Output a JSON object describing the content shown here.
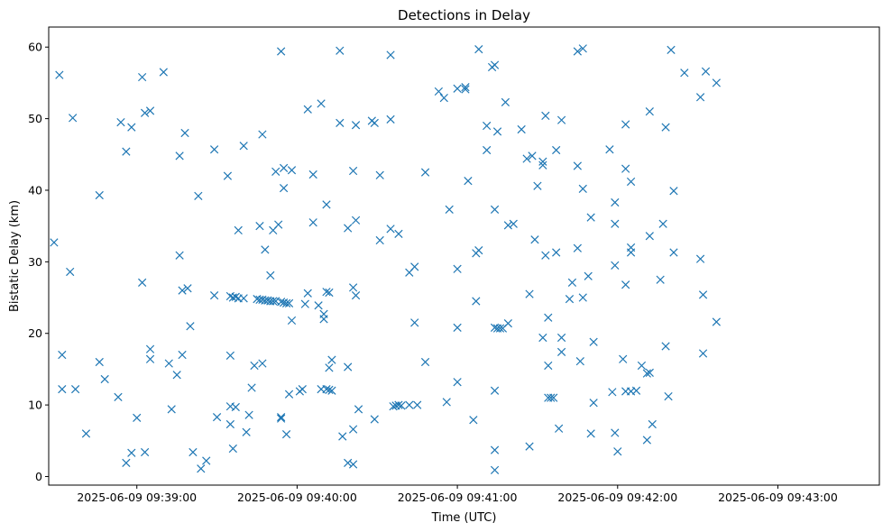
{
  "chart_data": {
    "type": "scatter",
    "title": "Detections in Delay",
    "xlabel": "Time (UTC)",
    "ylabel": "Bistatic Delay (km)",
    "marker": "x",
    "color": "#1f77b4",
    "grid": false,
    "xlim": [
      "2025-06-09 09:38:27",
      "2025-06-09 09:43:38"
    ],
    "ylim": [
      -1.2,
      62.8
    ],
    "x_ticks": [
      "2025-06-09 09:39:00",
      "2025-06-09 09:40:00",
      "2025-06-09 09:41:00",
      "2025-06-09 09:42:00",
      "2025-06-09 09:43:00"
    ],
    "y_ticks": [
      "0",
      "10",
      "20",
      "30",
      "40",
      "50",
      "60"
    ],
    "y_tick_values": [
      0,
      10,
      20,
      30,
      40,
      50,
      60
    ],
    "points": [
      [
        "09:38:29",
        32.7
      ],
      [
        "09:38:31",
        56.1
      ],
      [
        "09:38:32",
        17.0
      ],
      [
        "09:38:32",
        12.2
      ],
      [
        "09:38:35",
        28.6
      ],
      [
        "09:38:36",
        50.1
      ],
      [
        "09:38:37",
        12.2
      ],
      [
        "09:38:41",
        6.0
      ],
      [
        "09:38:46",
        39.3
      ],
      [
        "09:38:46",
        16.0
      ],
      [
        "09:38:48",
        13.6
      ],
      [
        "09:38:53",
        11.1
      ],
      [
        "09:38:54",
        49.5
      ],
      [
        "09:38:56",
        45.4
      ],
      [
        "09:38:56",
        1.9
      ],
      [
        "09:38:58",
        48.8
      ],
      [
        "09:38:58",
        3.3
      ],
      [
        "09:39:00",
        8.2
      ],
      [
        "09:39:02",
        55.8
      ],
      [
        "09:39:02",
        27.1
      ],
      [
        "09:39:03",
        3.4
      ],
      [
        "09:39:03",
        50.8
      ],
      [
        "09:39:05",
        51.1
      ],
      [
        "09:39:05",
        17.8
      ],
      [
        "09:39:05",
        16.4
      ],
      [
        "09:39:10",
        56.5
      ],
      [
        "09:39:12",
        15.8
      ],
      [
        "09:39:13",
        9.4
      ],
      [
        "09:39:15",
        14.2
      ],
      [
        "09:39:16",
        44.8
      ],
      [
        "09:39:16",
        30.9
      ],
      [
        "09:39:17",
        17.0
      ],
      [
        "09:39:17",
        26.0
      ],
      [
        "09:39:18",
        48.0
      ],
      [
        "09:39:19",
        26.3
      ],
      [
        "09:39:20",
        21.0
      ],
      [
        "09:39:21",
        3.4
      ],
      [
        "09:39:23",
        39.2
      ],
      [
        "09:39:24",
        1.1
      ],
      [
        "09:39:26",
        2.2
      ],
      [
        "09:39:29",
        45.7
      ],
      [
        "09:39:29",
        25.3
      ],
      [
        "09:39:30",
        8.3
      ],
      [
        "09:39:34",
        42.0
      ],
      [
        "09:39:35",
        25.2
      ],
      [
        "09:39:35",
        16.9
      ],
      [
        "09:39:35",
        7.3
      ],
      [
        "09:39:35",
        9.8
      ],
      [
        "09:39:36",
        25.0
      ],
      [
        "09:39:36",
        3.9
      ],
      [
        "09:39:37",
        25.1
      ],
      [
        "09:39:37",
        9.7
      ],
      [
        "09:39:38",
        24.9
      ],
      [
        "09:39:38",
        34.4
      ],
      [
        "09:39:40",
        46.2
      ],
      [
        "09:39:40",
        24.9
      ],
      [
        "09:39:41",
        6.2
      ],
      [
        "09:39:42",
        8.6
      ],
      [
        "09:39:43",
        12.4
      ],
      [
        "09:39:44",
        15.5
      ],
      [
        "09:39:45",
        24.8
      ],
      [
        "09:39:46",
        24.7
      ],
      [
        "09:39:46",
        35.0
      ],
      [
        "09:39:47",
        24.7
      ],
      [
        "09:39:47",
        47.8
      ],
      [
        "09:39:47",
        15.8
      ],
      [
        "09:39:48",
        31.7
      ],
      [
        "09:39:48",
        24.6
      ],
      [
        "09:39:49",
        24.6
      ],
      [
        "09:39:50",
        28.1
      ],
      [
        "09:39:50",
        24.5
      ],
      [
        "09:39:51",
        34.4
      ],
      [
        "09:39:51",
        24.5
      ],
      [
        "09:39:52",
        42.6
      ],
      [
        "09:39:52",
        24.5
      ],
      [
        "09:39:53",
        35.2
      ],
      [
        "09:39:54",
        24.4
      ],
      [
        "09:39:54",
        59.4
      ],
      [
        "09:39:54",
        8.3
      ],
      [
        "09:39:54",
        8.1
      ],
      [
        "09:39:55",
        43.1
      ],
      [
        "09:39:55",
        40.3
      ],
      [
        "09:39:55",
        24.3
      ],
      [
        "09:39:56",
        5.9
      ],
      [
        "09:39:56",
        24.2
      ],
      [
        "09:39:57",
        24.2
      ],
      [
        "09:39:57",
        11.5
      ],
      [
        "09:39:58",
        42.8
      ],
      [
        "09:39:58",
        21.8
      ],
      [
        "09:40:01",
        11.9
      ],
      [
        "09:40:02",
        12.2
      ],
      [
        "09:40:03",
        24.1
      ],
      [
        "09:40:04",
        51.3
      ],
      [
        "09:40:04",
        25.6
      ],
      [
        "09:40:06",
        42.2
      ],
      [
        "09:40:06",
        35.5
      ],
      [
        "09:40:08",
        23.9
      ],
      [
        "09:40:09",
        52.1
      ],
      [
        "09:40:09",
        12.2
      ],
      [
        "09:40:10",
        22.7
      ],
      [
        "09:40:10",
        22.0
      ],
      [
        "09:40:11",
        38.0
      ],
      [
        "09:40:11",
        12.2
      ],
      [
        "09:40:11",
        25.8
      ],
      [
        "09:40:12",
        25.7
      ],
      [
        "09:40:12",
        12.1
      ],
      [
        "09:40:12",
        15.2
      ],
      [
        "09:40:13",
        16.3
      ],
      [
        "09:40:13",
        12.0
      ],
      [
        "09:40:16",
        59.5
      ],
      [
        "09:40:16",
        49.4
      ],
      [
        "09:40:17",
        5.6
      ],
      [
        "09:40:19",
        34.7
      ],
      [
        "09:40:19",
        15.3
      ],
      [
        "09:40:19",
        1.9
      ],
      [
        "09:40:21",
        42.7
      ],
      [
        "09:40:21",
        26.4
      ],
      [
        "09:40:21",
        6.6
      ],
      [
        "09:40:21",
        1.7
      ],
      [
        "09:40:22",
        49.1
      ],
      [
        "09:40:22",
        35.8
      ],
      [
        "09:40:22",
        25.3
      ],
      [
        "09:40:23",
        9.4
      ],
      [
        "09:40:28",
        49.7
      ],
      [
        "09:40:29",
        49.4
      ],
      [
        "09:40:29",
        8.0
      ],
      [
        "09:40:31",
        33.0
      ],
      [
        "09:40:31",
        42.1
      ],
      [
        "09:40:35",
        49.9
      ],
      [
        "09:40:35",
        58.9
      ],
      [
        "09:40:35",
        34.6
      ],
      [
        "09:40:36",
        9.8
      ],
      [
        "09:40:37",
        9.9
      ],
      [
        "09:40:38",
        33.9
      ],
      [
        "09:40:38",
        10.0
      ],
      [
        "09:40:39",
        9.9
      ],
      [
        "09:40:42",
        10.0
      ],
      [
        "09:40:42",
        28.5
      ],
      [
        "09:40:44",
        29.3
      ],
      [
        "09:40:44",
        21.5
      ],
      [
        "09:40:45",
        10.0
      ],
      [
        "09:40:48",
        42.5
      ],
      [
        "09:40:48",
        16.0
      ],
      [
        "09:40:53",
        53.8
      ],
      [
        "09:40:55",
        52.9
      ],
      [
        "09:40:56",
        10.4
      ],
      [
        "09:40:57",
        37.3
      ],
      [
        "09:41:00",
        54.2
      ],
      [
        "09:41:00",
        29.0
      ],
      [
        "09:41:00",
        13.2
      ],
      [
        "09:41:00",
        20.8
      ],
      [
        "09:41:03",
        54.4
      ],
      [
        "09:41:03",
        54.1
      ],
      [
        "09:41:04",
        41.3
      ],
      [
        "09:41:06",
        7.9
      ],
      [
        "09:41:07",
        24.5
      ],
      [
        "09:41:07",
        31.2
      ],
      [
        "09:41:08",
        31.6
      ],
      [
        "09:41:08",
        59.7
      ],
      [
        "09:41:11",
        49.0
      ],
      [
        "09:41:11",
        45.6
      ],
      [
        "09:41:13",
        57.2
      ],
      [
        "09:41:14",
        57.5
      ],
      [
        "09:41:14",
        37.3
      ],
      [
        "09:41:14",
        20.8
      ],
      [
        "09:41:14",
        12.0
      ],
      [
        "09:41:14",
        3.7
      ],
      [
        "09:41:14",
        0.9
      ],
      [
        "09:41:15",
        48.2
      ],
      [
        "09:41:15",
        20.7
      ],
      [
        "09:41:16",
        20.7
      ],
      [
        "09:41:17",
        20.7
      ],
      [
        "09:41:18",
        52.3
      ],
      [
        "09:41:19",
        35.1
      ],
      [
        "09:41:19",
        21.4
      ],
      [
        "09:41:21",
        35.3
      ],
      [
        "09:41:24",
        48.5
      ],
      [
        "09:41:26",
        44.4
      ],
      [
        "09:41:27",
        25.5
      ],
      [
        "09:41:27",
        4.2
      ],
      [
        "09:41:28",
        44.8
      ],
      [
        "09:41:29",
        33.1
      ],
      [
        "09:41:30",
        40.6
      ],
      [
        "09:41:32",
        43.5
      ],
      [
        "09:41:32",
        19.4
      ],
      [
        "09:41:32",
        44.0
      ],
      [
        "09:41:33",
        30.9
      ],
      [
        "09:41:33",
        50.4
      ],
      [
        "09:41:34",
        22.2
      ],
      [
        "09:41:34",
        11.0
      ],
      [
        "09:41:34",
        15.5
      ],
      [
        "09:41:35",
        11.0
      ],
      [
        "09:41:36",
        11.0
      ],
      [
        "09:41:37",
        45.6
      ],
      [
        "09:41:37",
        31.3
      ],
      [
        "09:41:38",
        6.7
      ],
      [
        "09:41:39",
        49.8
      ],
      [
        "09:41:39",
        19.4
      ],
      [
        "09:41:39",
        17.4
      ],
      [
        "09:41:42",
        24.8
      ],
      [
        "09:41:43",
        27.1
      ],
      [
        "09:41:45",
        59.4
      ],
      [
        "09:41:45",
        31.9
      ],
      [
        "09:41:45",
        43.4
      ],
      [
        "09:41:46",
        16.1
      ],
      [
        "09:41:47",
        40.2
      ],
      [
        "09:41:47",
        59.8
      ],
      [
        "09:41:47",
        25.0
      ],
      [
        "09:41:49",
        28.0
      ],
      [
        "09:41:50",
        36.2
      ],
      [
        "09:41:50",
        6.0
      ],
      [
        "09:41:51",
        18.8
      ],
      [
        "09:41:51",
        10.3
      ],
      [
        "09:41:57",
        45.7
      ],
      [
        "09:41:58",
        11.8
      ],
      [
        "09:41:59",
        38.3
      ],
      [
        "09:41:59",
        35.3
      ],
      [
        "09:41:59",
        29.5
      ],
      [
        "09:41:59",
        6.1
      ],
      [
        "09:42:00",
        3.5
      ],
      [
        "09:42:02",
        16.4
      ],
      [
        "09:42:03",
        49.2
      ],
      [
        "09:42:03",
        43.0
      ],
      [
        "09:42:03",
        26.8
      ],
      [
        "09:42:03",
        11.9
      ],
      [
        "09:42:05",
        41.2
      ],
      [
        "09:42:05",
        32.0
      ],
      [
        "09:42:05",
        31.3
      ],
      [
        "09:42:05",
        11.9
      ],
      [
        "09:42:07",
        12.0
      ],
      [
        "09:42:09",
        15.5
      ],
      [
        "09:42:11",
        14.4
      ],
      [
        "09:42:11",
        5.1
      ],
      [
        "09:42:12",
        51.0
      ],
      [
        "09:42:12",
        33.6
      ],
      [
        "09:42:12",
        14.5
      ],
      [
        "09:42:13",
        7.3
      ],
      [
        "09:42:16",
        27.5
      ],
      [
        "09:42:17",
        35.3
      ],
      [
        "09:42:18",
        48.8
      ],
      [
        "09:42:18",
        18.2
      ],
      [
        "09:42:19",
        11.2
      ],
      [
        "09:42:20",
        59.6
      ],
      [
        "09:42:21",
        39.9
      ],
      [
        "09:42:21",
        31.3
      ],
      [
        "09:42:25",
        56.4
      ],
      [
        "09:42:31",
        53.0
      ],
      [
        "09:42:31",
        30.4
      ],
      [
        "09:42:32",
        25.4
      ],
      [
        "09:42:32",
        17.2
      ],
      [
        "09:42:33",
        56.6
      ],
      [
        "09:42:37",
        55.0
      ],
      [
        "09:42:37",
        21.6
      ]
    ]
  }
}
